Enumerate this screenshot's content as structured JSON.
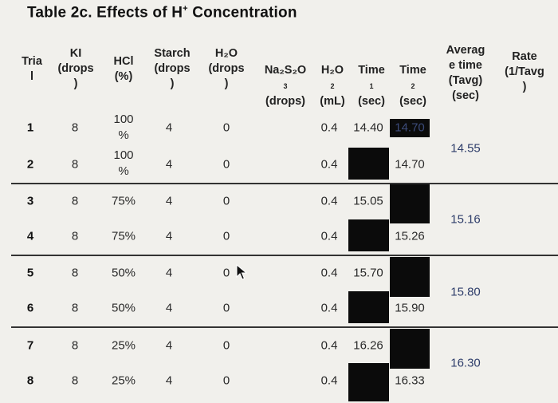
{
  "title": {
    "prefix": "Table 2c. Effects of H",
    "sup": "+",
    "suffix": " Concentration"
  },
  "headers": {
    "trial": "Tria\nl",
    "ki": "KI\n(drops\n)",
    "hcl": "HCl\n(%)",
    "starch": "Starch\n(drops\n)",
    "h2o_drops": "H₂O\n(drops\n)",
    "na2s2o3": "Na₂S₂O",
    "na2s2o3_sub": "3",
    "na2s2o3_unit": "(drops)",
    "h2o_ml": "H₂O",
    "h2o_ml_sub": "2",
    "h2o_ml_unit": "(mL)",
    "time1": "Time",
    "time1_sub": "1",
    "time1_unit": "(sec)",
    "time2": "Time",
    "time2_sub": "2",
    "time2_unit": "(sec)",
    "avg": "Averag\ne time\n(Tavg)\n(sec)",
    "rate": "Rate\n(1/Tavg\n)"
  },
  "rows": [
    {
      "trial": "1",
      "ki": "8",
      "hcl": "100\n%",
      "starch": "4",
      "h2o_drops": "0",
      "h2o_ml": "0.4",
      "time1": "14.40",
      "time2": "14.70"
    },
    {
      "trial": "2",
      "ki": "8",
      "hcl": "100\n%",
      "starch": "4",
      "h2o_drops": "0",
      "h2o_ml": "0.4",
      "time1": "",
      "time2": "14.70"
    },
    {
      "trial": "3",
      "ki": "8",
      "hcl": "75%",
      "starch": "4",
      "h2o_drops": "0",
      "h2o_ml": "0.4",
      "time1": "15.05",
      "time2": ""
    },
    {
      "trial": "4",
      "ki": "8",
      "hcl": "75%",
      "starch": "4",
      "h2o_drops": "0",
      "h2o_ml": "0.4",
      "time1": "",
      "time2": "15.26"
    },
    {
      "trial": "5",
      "ki": "8",
      "hcl": "50%",
      "starch": "4",
      "h2o_drops": "0",
      "h2o_ml": "0.4",
      "time1": "15.70",
      "time2": ""
    },
    {
      "trial": "6",
      "ki": "8",
      "hcl": "50%",
      "starch": "4",
      "h2o_drops": "0",
      "h2o_ml": "0.4",
      "time1": "",
      "time2": "15.90"
    },
    {
      "trial": "7",
      "ki": "8",
      "hcl": "25%",
      "starch": "4",
      "h2o_drops": "0",
      "h2o_ml": "0.4",
      "time1": "16.26",
      "time2": ""
    },
    {
      "trial": "8",
      "ki": "8",
      "hcl": "25%",
      "starch": "4",
      "h2o_drops": "0",
      "h2o_ml": "0.4",
      "time1": "",
      "time2": "16.33"
    }
  ],
  "averages": [
    "14.55",
    "15.16",
    "15.80",
    "16.30"
  ],
  "colors": {
    "redaction": "#0b0b0b",
    "handwriting": "#2e3d6a",
    "rule": "#333333"
  }
}
